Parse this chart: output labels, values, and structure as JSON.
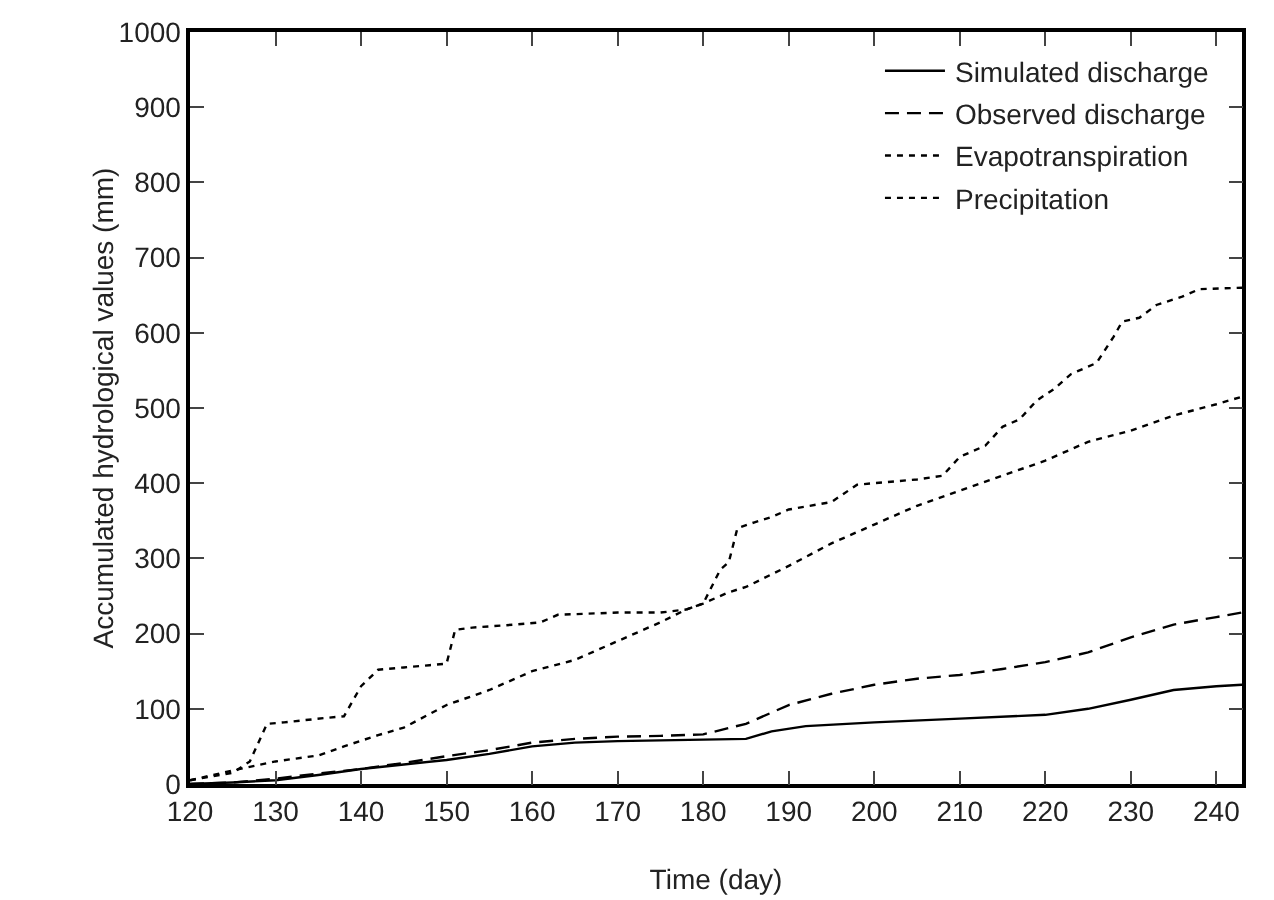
{
  "chart_data": {
    "type": "line",
    "xlabel": "Time (day)",
    "ylabel": "Accumulated hydrological values (mm)",
    "xlim": [
      120,
      243
    ],
    "xticks": [
      120,
      130,
      140,
      150,
      160,
      170,
      180,
      190,
      200,
      210,
      220,
      230,
      240
    ],
    "ylim": [
      0,
      1000
    ],
    "yticks": [
      0,
      100,
      200,
      300,
      400,
      500,
      600,
      700,
      800,
      900,
      1000
    ],
    "grid": false,
    "legend": "top right",
    "marker": "none",
    "series": [
      {
        "name": "Simulated discharge",
        "color": "#000000",
        "line_style": "solid",
        "x": [
          120,
          125,
          130,
          135,
          140,
          145,
          150,
          155,
          160,
          165,
          170,
          175,
          180,
          185,
          188,
          192,
          200,
          210,
          220,
          225,
          230,
          235,
          240,
          243
        ],
        "values": [
          0,
          2,
          5,
          12,
          20,
          26,
          32,
          40,
          50,
          55,
          57,
          58,
          59,
          60,
          70,
          77,
          82,
          87,
          92,
          100,
          112,
          125,
          130,
          132
        ]
      },
      {
        "name": "Observed discharge",
        "color": "#000000",
        "line_style": "dashed",
        "x": [
          120,
          125,
          130,
          135,
          140,
          145,
          150,
          155,
          160,
          165,
          170,
          175,
          180,
          185,
          190,
          195,
          200,
          205,
          210,
          215,
          220,
          225,
          230,
          235,
          240,
          243
        ],
        "values": [
          0,
          2,
          7,
          14,
          20,
          28,
          37,
          45,
          55,
          60,
          63,
          64,
          66,
          80,
          105,
          120,
          132,
          140,
          145,
          153,
          162,
          175,
          195,
          212,
          222,
          228
        ]
      },
      {
        "name": "Evapotranspiration",
        "color": "#000000",
        "line_style": "dashed",
        "x": [
          120,
          125,
          130,
          135,
          138,
          142,
          145,
          150,
          155,
          160,
          165,
          170,
          175,
          178,
          180,
          183,
          185,
          190,
          195,
          200,
          205,
          210,
          215,
          220,
          225,
          230,
          235,
          240,
          243
        ],
        "values": [
          5,
          18,
          30,
          38,
          50,
          65,
          75,
          105,
          125,
          150,
          165,
          190,
          215,
          232,
          240,
          255,
          262,
          290,
          320,
          345,
          370,
          390,
          410,
          430,
          455,
          470,
          490,
          505,
          515
        ]
      },
      {
        "name": "Precipitation",
        "color": "#000000",
        "line_style": "dotted",
        "x": [
          120,
          125,
          127,
          129,
          131,
          136,
          138,
          140,
          142,
          145,
          148,
          150,
          151,
          153,
          158,
          161,
          163,
          170,
          175,
          178,
          180,
          182,
          183,
          184,
          186,
          188,
          190,
          195,
          198,
          205,
          208,
          210,
          213,
          215,
          217,
          219,
          221,
          223,
          226,
          228,
          229,
          231,
          233,
          236,
          238,
          243
        ],
        "values": [
          5,
          15,
          30,
          80,
          82,
          88,
          90,
          130,
          152,
          155,
          158,
          160,
          205,
          208,
          212,
          215,
          225,
          228,
          228,
          232,
          240,
          285,
          295,
          340,
          348,
          355,
          365,
          375,
          398,
          405,
          410,
          435,
          450,
          475,
          485,
          510,
          525,
          545,
          560,
          595,
          615,
          620,
          637,
          648,
          658,
          660
        ]
      }
    ]
  }
}
